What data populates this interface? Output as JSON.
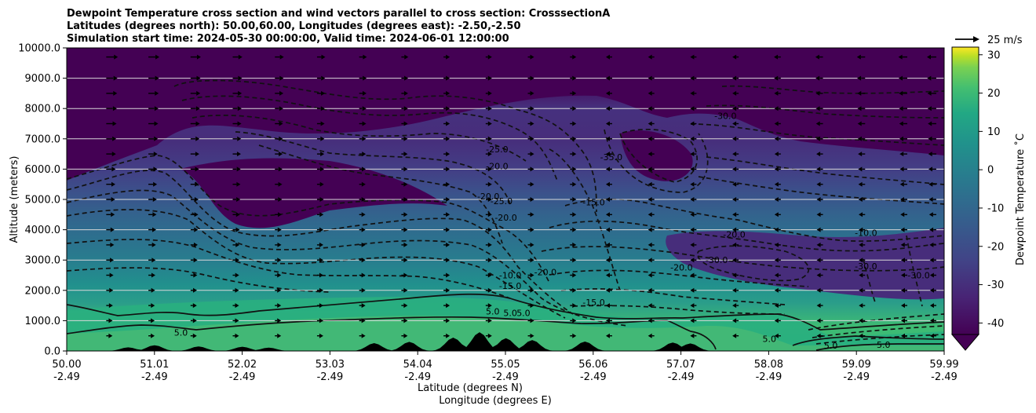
{
  "chart_data": {
    "type": "heatmap",
    "title_lines": [
      "Dewpoint Temperature cross section and wind vectors parallel to cross section: CrosssectionA",
      "Latitudes (degrees north): 50.00,60.00, Longitudes (degrees east): -2.50,-2.50",
      "Simulation start time: 2024-05-30 00:00:00, Valid time: 2024-06-01 12:00:00"
    ],
    "xlabel": "Latitude (degrees N)",
    "xlabel2": "Longitude (degrees E)",
    "ylabel": "Altitude (meters)",
    "colorbar_label": "Dewpoint Temperature ˚C",
    "quiver_key": "25 m/s",
    "xlim": [
      50.0,
      59.99
    ],
    "ylim": [
      0,
      10000
    ],
    "x_ticks": [
      {
        "lat": "50.00",
        "lon": "-2.49"
      },
      {
        "lat": "51.01",
        "lon": "-2.49"
      },
      {
        "lat": "52.02",
        "lon": "-2.49"
      },
      {
        "lat": "53.03",
        "lon": "-2.49"
      },
      {
        "lat": "54.04",
        "lon": "-2.49"
      },
      {
        "lat": "55.05",
        "lon": "-2.49"
      },
      {
        "lat": "56.06",
        "lon": "-2.49"
      },
      {
        "lat": "57.07",
        "lon": "-2.49"
      },
      {
        "lat": "58.08",
        "lon": "-2.49"
      },
      {
        "lat": "59.09",
        "lon": "-2.49"
      },
      {
        "lat": "59.99",
        "lon": "-2.49"
      }
    ],
    "y_ticks": [
      "0.0",
      "1000.0",
      "2000.0",
      "3000.0",
      "4000.0",
      "5000.0",
      "6000.0",
      "7000.0",
      "8000.0",
      "9000.0",
      "10000.0"
    ],
    "y_tick_values": [
      0,
      1000,
      2000,
      3000,
      4000,
      5000,
      6000,
      7000,
      8000,
      9000,
      10000
    ],
    "colorbar_ticks": [
      "-40",
      "-30",
      "-20",
      "-10",
      "0",
      "10",
      "20",
      "30"
    ],
    "colorbar_tick_values": [
      -40,
      -30,
      -20,
      -10,
      0,
      10,
      20,
      30
    ],
    "colorbar_range": [
      -43,
      32
    ],
    "grid": "horizontal",
    "colormap": "viridis",
    "contour_labels": [
      {
        "text": "-25.0",
        "x": 54.9,
        "y": 6550
      },
      {
        "text": "-20.0",
        "x": 54.9,
        "y": 6000
      },
      {
        "text": "-20.0",
        "x": 54.8,
        "y": 5000
      },
      {
        "text": "-25.0",
        "x": 54.95,
        "y": 4850
      },
      {
        "text": "-20.0",
        "x": 55.0,
        "y": 4300
      },
      {
        "text": "-10.0",
        "x": 55.05,
        "y": 2400
      },
      {
        "text": "-15.0",
        "x": 55.05,
        "y": 2050
      },
      {
        "text": "-20.0",
        "x": 55.45,
        "y": 2500
      },
      {
        "text": "-15.0",
        "x": 56.0,
        "y": 1500
      },
      {
        "text": "-15.0",
        "x": 56.0,
        "y": 4800
      },
      {
        "text": "-35.0",
        "x": 56.2,
        "y": 6300
      },
      {
        "text": "-30.0",
        "x": 57.5,
        "y": 7650
      },
      {
        "text": "-20.0",
        "x": 57.6,
        "y": 3750
      },
      {
        "text": "-30.0",
        "x": 57.4,
        "y": 2900
      },
      {
        "text": "-20.0",
        "x": 57.0,
        "y": 2650
      },
      {
        "text": "-10.0",
        "x": 59.1,
        "y": 3800
      },
      {
        "text": "-30.0",
        "x": 59.1,
        "y": 2700
      },
      {
        "text": "-30.0",
        "x": 59.7,
        "y": 2400
      },
      {
        "text": "5.0",
        "x": 54.85,
        "y": 1200
      },
      {
        "text": "5.0",
        "x": 55.2,
        "y": 1150
      },
      {
        "text": "5.0",
        "x": 55.05,
        "y": 1150
      },
      {
        "text": "5.0",
        "x": 51.3,
        "y": 500
      },
      {
        "text": "5.0",
        "x": 58.0,
        "y": 300
      },
      {
        "text": "5.0",
        "x": 58.7,
        "y": 80
      },
      {
        "text": "5.0",
        "x": 59.3,
        "y": 100
      }
    ],
    "terrain_peaks_m": [
      {
        "x": 50.7,
        "h": 120
      },
      {
        "x": 51.0,
        "h": 190
      },
      {
        "x": 51.5,
        "h": 150
      },
      {
        "x": 52.0,
        "h": 140
      },
      {
        "x": 52.3,
        "h": 110
      },
      {
        "x": 53.5,
        "h": 260
      },
      {
        "x": 53.9,
        "h": 300
      },
      {
        "x": 54.4,
        "h": 440
      },
      {
        "x": 54.7,
        "h": 620
      },
      {
        "x": 55.0,
        "h": 420
      },
      {
        "x": 55.3,
        "h": 360
      },
      {
        "x": 55.9,
        "h": 310
      },
      {
        "x": 56.9,
        "h": 280
      },
      {
        "x": 57.1,
        "h": 250
      }
    ],
    "wind_columns_x": [
      50.45,
      50.93,
      51.41,
      51.89,
      52.37,
      52.85,
      53.33,
      53.81,
      54.29,
      54.77,
      55.25,
      55.73,
      56.21,
      56.69,
      57.17,
      57.65,
      58.13,
      58.61,
      59.09,
      59.57,
      59.9
    ],
    "wind_rows_m": [
      9700,
      9000,
      8500,
      8000,
      7500,
      7000,
      6500,
      6000,
      5500,
      5000,
      4500,
      4000,
      3500,
      3000,
      2500,
      2000,
      1500,
      1000,
      500
    ]
  }
}
